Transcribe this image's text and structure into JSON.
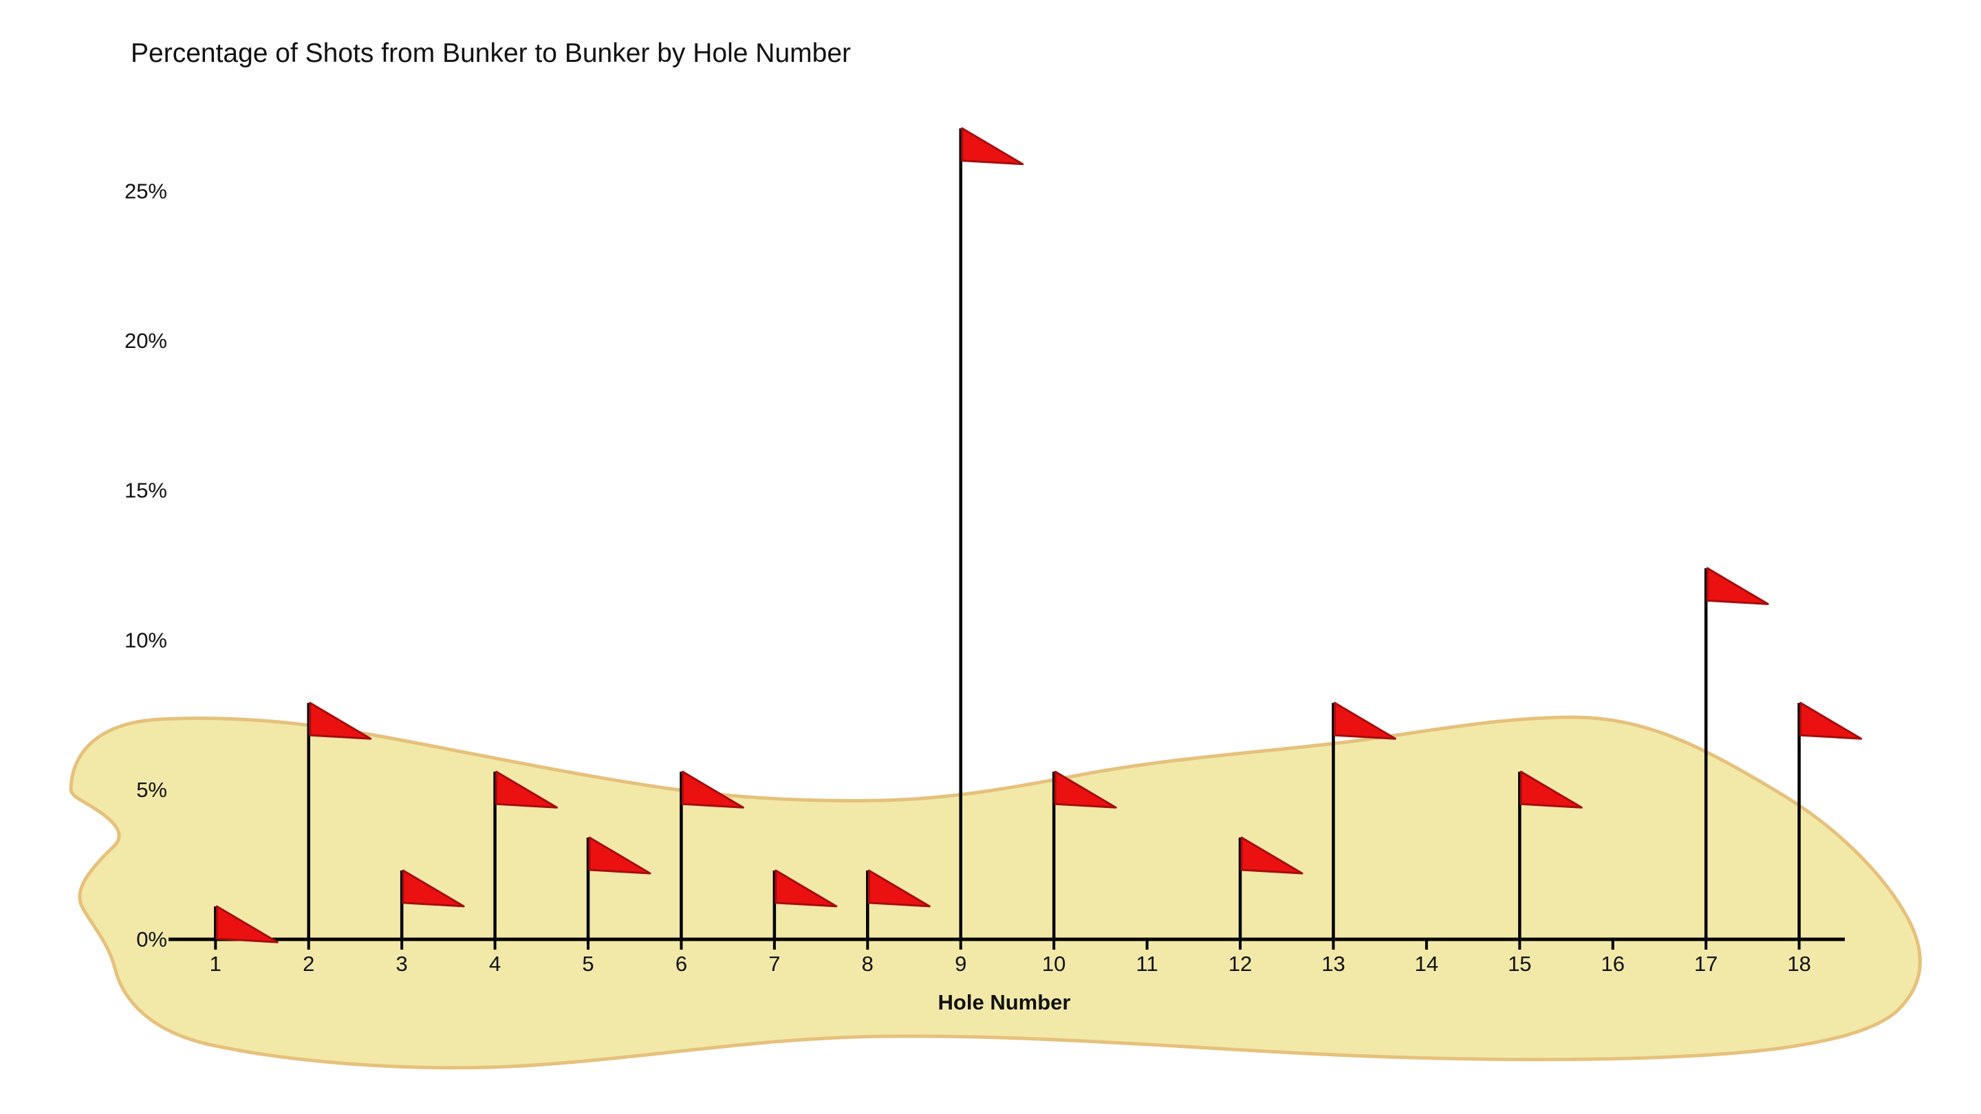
{
  "title": "Percentage of Shots from Bunker to Bunker by Hole Number",
  "x_axis_title": "Hole Number",
  "chart_data": {
    "type": "bar",
    "marker_style": "golf-flag-pennant",
    "title": "Percentage of Shots from Bunker to Bunker by Hole Number",
    "xlabel": "Hole Number",
    "ylabel": "",
    "categories": [
      "1",
      "2",
      "3",
      "4",
      "5",
      "6",
      "7",
      "8",
      "9",
      "10",
      "11",
      "12",
      "13",
      "14",
      "15",
      "16",
      "17",
      "18"
    ],
    "values": [
      1.1,
      7.9,
      2.3,
      5.6,
      3.4,
      5.6,
      2.3,
      2.3,
      27.1,
      5.6,
      0,
      3.4,
      7.9,
      0,
      5.6,
      0,
      12.4,
      7.9
    ],
    "y_ticks": [
      0,
      5,
      10,
      15,
      20,
      25
    ],
    "y_tick_labels": [
      "0%",
      "5%",
      "10%",
      "15%",
      "20%",
      "25%"
    ],
    "ylim": [
      0,
      27.5
    ],
    "grid": false,
    "legend": false,
    "background_shape": "sand-bunker-blob",
    "colors": {
      "flag_fill": "#EC1111",
      "flag_edge": "#A60D0D",
      "pole": "#000000",
      "axis": "#000000",
      "sand_fill": "#F2E9A9",
      "sand_edge": "#E6C17C",
      "text": "#111111",
      "background": "#FFFFFF"
    }
  }
}
